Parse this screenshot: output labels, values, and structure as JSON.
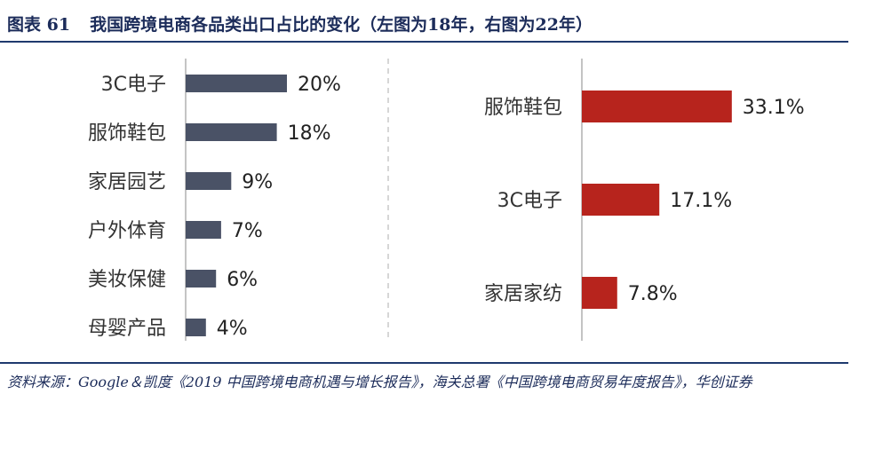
{
  "figure": {
    "label": "图表 61",
    "title": "我国跨境电商各品类出口占比的变化（左图为18年，右图为22年）",
    "source": "资料来源：Google＆凯度《2019 中国跨境电商机遇与增长报告》，海关总署《中国跨境电商贸易年度报告》，华创证券"
  },
  "colors": {
    "left_bar": "#4a5266",
    "right_bar": "#b7241d",
    "axis": "#b0b0b0",
    "rule": "#1f3a6e"
  },
  "chart_data": [
    {
      "type": "bar",
      "orientation": "horizontal",
      "categories": [
        "3C电子",
        "服饰鞋包",
        "家居园艺",
        "户外体育",
        "美妆保健",
        "母婴产品"
      ],
      "values": [
        20,
        18,
        9,
        7,
        6,
        4
      ],
      "value_labels": [
        "20%",
        "18%",
        "9%",
        "7%",
        "6%",
        "4%"
      ],
      "unit": "%",
      "grid": false
    },
    {
      "type": "bar",
      "orientation": "horizontal",
      "categories": [
        "服饰鞋包",
        "3C电子",
        "家居家纺"
      ],
      "values": [
        33.1,
        17.1,
        7.8
      ],
      "value_labels": [
        "33.1%",
        "17.1%",
        "7.8%"
      ],
      "unit": "%",
      "grid": false
    }
  ]
}
